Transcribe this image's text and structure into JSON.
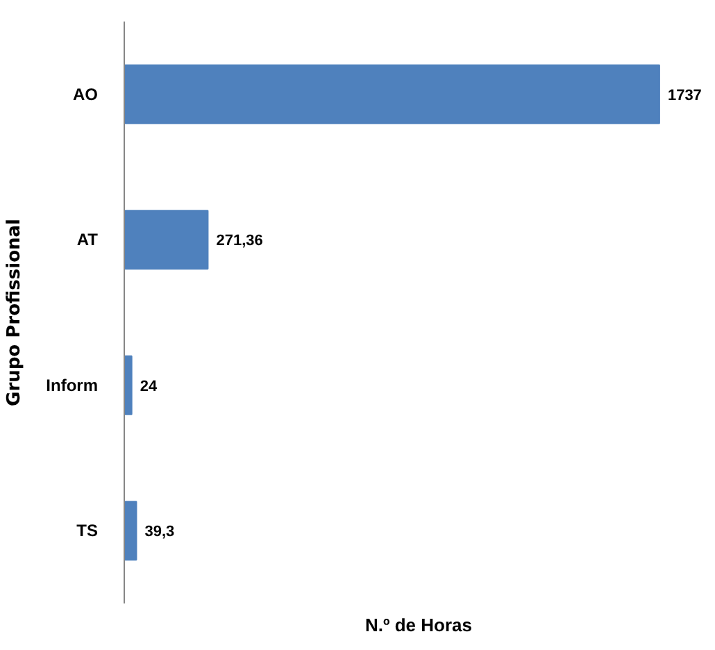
{
  "chart_data": {
    "type": "bar",
    "orientation": "horizontal",
    "categories": [
      "AO",
      "AT",
      "Inform",
      "TS"
    ],
    "values": [
      1737,
      271.36,
      24,
      39.3
    ],
    "value_labels": [
      "1737",
      "271,36",
      "24",
      "39,3"
    ],
    "color": "#4f81bd",
    "xlabel": "N.º de Horas",
    "ylabel": "Grupo Profissional"
  }
}
